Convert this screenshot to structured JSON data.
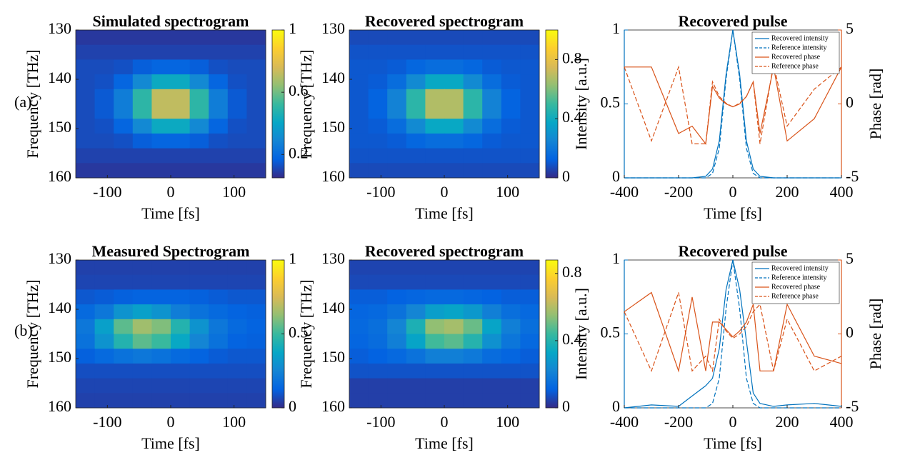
{
  "panel_labels": [
    "(a)",
    "(b)"
  ],
  "chart_data": [
    {
      "type": "heatmap",
      "title": "Simulated spectrogram",
      "xlabel": "Time [fs]",
      "ylabel": "Frequency [THz]",
      "x_bins": [
        -150,
        -120,
        -90,
        -60,
        -30,
        0,
        30,
        60,
        90,
        120,
        150
      ],
      "y_bins": [
        130,
        133,
        136,
        139,
        142,
        145,
        148,
        151,
        154,
        157,
        160
      ],
      "values": [
        [
          0.08,
          0.08,
          0.08,
          0.08,
          0.08,
          0.08,
          0.08,
          0.08,
          0.08,
          0.08
        ],
        [
          0.1,
          0.1,
          0.1,
          0.1,
          0.1,
          0.1,
          0.1,
          0.1,
          0.1,
          0.1
        ],
        [
          0.12,
          0.12,
          0.13,
          0.16,
          0.18,
          0.18,
          0.16,
          0.13,
          0.12,
          0.12
        ],
        [
          0.12,
          0.13,
          0.18,
          0.3,
          0.42,
          0.42,
          0.3,
          0.18,
          0.13,
          0.12
        ],
        [
          0.12,
          0.15,
          0.26,
          0.5,
          0.72,
          0.72,
          0.5,
          0.26,
          0.15,
          0.12
        ],
        [
          0.12,
          0.15,
          0.26,
          0.5,
          0.72,
          0.72,
          0.5,
          0.26,
          0.15,
          0.12
        ],
        [
          0.12,
          0.13,
          0.18,
          0.3,
          0.42,
          0.42,
          0.3,
          0.18,
          0.13,
          0.12
        ],
        [
          0.12,
          0.12,
          0.13,
          0.16,
          0.18,
          0.18,
          0.16,
          0.13,
          0.12,
          0.12
        ],
        [
          0.1,
          0.1,
          0.1,
          0.1,
          0.1,
          0.1,
          0.1,
          0.1,
          0.1,
          0.1
        ],
        [
          0.08,
          0.08,
          0.08,
          0.08,
          0.08,
          0.08,
          0.08,
          0.08,
          0.08,
          0.08
        ]
      ],
      "xlim": [
        -150,
        150
      ],
      "xticks": [
        -100,
        0,
        100
      ],
      "ylim": [
        160,
        130
      ],
      "yticks": [
        130,
        140,
        150,
        160
      ],
      "colormap": "parula",
      "clim": [
        0.05,
        1
      ],
      "cticks": [
        0.2,
        0.6,
        1
      ]
    },
    {
      "type": "heatmap",
      "title": "Recovered spectrogram",
      "xlabel": "Time [fs]",
      "ylabel": "Frequency [THz]",
      "x_bins": [
        -150,
        -120,
        -90,
        -60,
        -30,
        0,
        30,
        60,
        90,
        120,
        150
      ],
      "y_bins": [
        130,
        133,
        136,
        139,
        142,
        145,
        148,
        151,
        154,
        157,
        160
      ],
      "values": [
        [
          0.07,
          0.07,
          0.07,
          0.07,
          0.07,
          0.07,
          0.07,
          0.07,
          0.07,
          0.07
        ],
        [
          0.09,
          0.09,
          0.09,
          0.09,
          0.09,
          0.09,
          0.09,
          0.09,
          0.09,
          0.09
        ],
        [
          0.1,
          0.1,
          0.11,
          0.14,
          0.16,
          0.16,
          0.14,
          0.11,
          0.1,
          0.1
        ],
        [
          0.1,
          0.11,
          0.16,
          0.27,
          0.38,
          0.38,
          0.27,
          0.16,
          0.11,
          0.1
        ],
        [
          0.1,
          0.13,
          0.24,
          0.47,
          0.68,
          0.68,
          0.47,
          0.24,
          0.13,
          0.1
        ],
        [
          0.1,
          0.13,
          0.24,
          0.47,
          0.68,
          0.68,
          0.47,
          0.24,
          0.13,
          0.1
        ],
        [
          0.1,
          0.11,
          0.16,
          0.27,
          0.38,
          0.38,
          0.27,
          0.16,
          0.11,
          0.1
        ],
        [
          0.1,
          0.1,
          0.11,
          0.14,
          0.16,
          0.16,
          0.14,
          0.11,
          0.1,
          0.1
        ],
        [
          0.09,
          0.09,
          0.09,
          0.09,
          0.09,
          0.09,
          0.09,
          0.09,
          0.09,
          0.09
        ],
        [
          0.07,
          0.07,
          0.07,
          0.07,
          0.07,
          0.07,
          0.07,
          0.07,
          0.07,
          0.07
        ]
      ],
      "xlim": [
        -150,
        150
      ],
      "xticks": [
        -100,
        0,
        100
      ],
      "ylim": [
        160,
        130
      ],
      "yticks": [
        130,
        140,
        150,
        160
      ],
      "colormap": "parula",
      "clim": [
        0,
        1
      ],
      "cticks": [
        0,
        0.4,
        0.8
      ]
    },
    {
      "type": "line",
      "title": "Recovered pulse",
      "xlabel": "Time [fs]",
      "ylabel": "Intensity [a.u.]",
      "y2label": "Phase [rad]",
      "ylabel_color": "#0072bd",
      "y2label_color": "#d95319",
      "x": [
        -400,
        -300,
        -200,
        -150,
        -100,
        -75,
        -50,
        -25,
        0,
        25,
        50,
        75,
        100,
        150,
        200,
        300,
        400
      ],
      "series": [
        {
          "name": "Recovered intensity",
          "color": "#0072bd",
          "dash": "solid",
          "values": [
            0,
            0,
            0,
            0,
            0.01,
            0.06,
            0.25,
            0.7,
            1,
            0.7,
            0.25,
            0.06,
            0.01,
            0,
            0,
            0,
            0
          ]
        },
        {
          "name": "Reference intensity",
          "color": "#0072bd",
          "dash": "dashed",
          "values": [
            0,
            0,
            0,
            0,
            0,
            0.03,
            0.2,
            0.67,
            1,
            0.67,
            0.2,
            0.03,
            0,
            0,
            0,
            0,
            0
          ]
        },
        {
          "name": "Recovered phase",
          "color": "#d95319",
          "dash": "solid",
          "axis": "y2",
          "values": [
            2.5,
            2.5,
            -2,
            -1.5,
            -2.7,
            1.2,
            0.4,
            0,
            -0.2,
            0,
            0.5,
            1.5,
            -2,
            2.5,
            -2.5,
            -1,
            2.5
          ]
        },
        {
          "name": "Reference phase",
          "color": "#d95319",
          "dash": "dashed",
          "axis": "y2",
          "values": [
            2.5,
            -2.5,
            2.5,
            -2.7,
            -2.7,
            1.5,
            0.5,
            0.05,
            -0.2,
            0.05,
            0.5,
            1.5,
            -2.7,
            2.7,
            -1.5,
            1,
            2.5
          ]
        }
      ],
      "xlim": [
        -400,
        400
      ],
      "xticks": [
        -400,
        -200,
        0,
        200,
        400
      ],
      "ylim": [
        0,
        1
      ],
      "yticks": [
        0,
        0.5,
        1
      ],
      "y2lim": [
        -5,
        5
      ],
      "y2ticks": [
        -5,
        0,
        5
      ],
      "legend": "upper right"
    },
    {
      "type": "heatmap",
      "title": "Measured Spectrogram",
      "xlabel": "Time [fs]",
      "ylabel": "Frequency [THz]",
      "x_bins": [
        -150,
        -120,
        -90,
        -60,
        -30,
        0,
        30,
        60,
        90,
        120,
        150
      ],
      "y_bins": [
        130,
        133,
        136,
        139,
        142,
        145,
        148,
        151,
        154,
        157,
        160
      ],
      "values": [
        [
          0.05,
          0.05,
          0.05,
          0.05,
          0.05,
          0.05,
          0.05,
          0.05,
          0.05,
          0.05
        ],
        [
          0.06,
          0.06,
          0.06,
          0.06,
          0.06,
          0.06,
          0.06,
          0.06,
          0.06,
          0.06
        ],
        [
          0.1,
          0.11,
          0.12,
          0.13,
          0.13,
          0.13,
          0.12,
          0.11,
          0.1,
          0.1
        ],
        [
          0.15,
          0.2,
          0.3,
          0.35,
          0.3,
          0.22,
          0.18,
          0.15,
          0.13,
          0.12
        ],
        [
          0.2,
          0.35,
          0.55,
          0.65,
          0.6,
          0.45,
          0.3,
          0.2,
          0.15,
          0.13
        ],
        [
          0.18,
          0.3,
          0.45,
          0.55,
          0.5,
          0.38,
          0.25,
          0.18,
          0.13,
          0.12
        ],
        [
          0.12,
          0.15,
          0.18,
          0.2,
          0.18,
          0.15,
          0.13,
          0.11,
          0.1,
          0.1
        ],
        [
          0.08,
          0.08,
          0.08,
          0.08,
          0.08,
          0.08,
          0.08,
          0.08,
          0.08,
          0.08
        ],
        [
          0.06,
          0.06,
          0.06,
          0.06,
          0.06,
          0.06,
          0.06,
          0.06,
          0.06,
          0.06
        ],
        [
          0.05,
          0.05,
          0.05,
          0.05,
          0.05,
          0.05,
          0.05,
          0.05,
          0.05,
          0.05
        ]
      ],
      "xlim": [
        -150,
        150
      ],
      "xticks": [
        -100,
        0,
        100
      ],
      "ylim": [
        160,
        130
      ],
      "yticks": [
        130,
        140,
        150,
        160
      ],
      "colormap": "parula",
      "clim": [
        0,
        1
      ],
      "cticks": [
        0,
        0.5,
        1
      ]
    },
    {
      "type": "heatmap",
      "title": "Recovered spectrogram",
      "xlabel": "Time [fs]",
      "ylabel": "Frequency [THz]",
      "x_bins": [
        -150,
        -120,
        -90,
        -60,
        -30,
        0,
        30,
        60,
        90,
        120,
        150
      ],
      "y_bins": [
        130,
        133,
        136,
        139,
        142,
        145,
        148,
        151,
        154,
        157,
        160
      ],
      "values": [
        [
          0.05,
          0.05,
          0.05,
          0.05,
          0.05,
          0.05,
          0.05,
          0.05,
          0.05,
          0.05
        ],
        [
          0.06,
          0.06,
          0.06,
          0.06,
          0.06,
          0.06,
          0.06,
          0.06,
          0.06,
          0.06
        ],
        [
          0.1,
          0.1,
          0.11,
          0.12,
          0.13,
          0.13,
          0.12,
          0.11,
          0.1,
          0.1
        ],
        [
          0.12,
          0.13,
          0.16,
          0.22,
          0.3,
          0.32,
          0.28,
          0.2,
          0.15,
          0.13
        ],
        [
          0.13,
          0.15,
          0.22,
          0.38,
          0.55,
          0.58,
          0.5,
          0.32,
          0.2,
          0.15
        ],
        [
          0.12,
          0.14,
          0.2,
          0.32,
          0.45,
          0.48,
          0.4,
          0.26,
          0.17,
          0.13
        ],
        [
          0.1,
          0.11,
          0.13,
          0.16,
          0.2,
          0.2,
          0.18,
          0.14,
          0.12,
          0.1
        ],
        [
          0.08,
          0.08,
          0.08,
          0.08,
          0.08,
          0.08,
          0.08,
          0.08,
          0.08,
          0.08
        ],
        [
          0.04,
          0.04,
          0.04,
          0.04,
          0.04,
          0.04,
          0.04,
          0.04,
          0.04,
          0.04
        ],
        [
          0.04,
          0.04,
          0.04,
          0.04,
          0.04,
          0.04,
          0.04,
          0.04,
          0.04,
          0.04
        ]
      ],
      "xlim": [
        -150,
        150
      ],
      "xticks": [
        -100,
        0,
        100
      ],
      "ylim": [
        160,
        130
      ],
      "yticks": [
        130,
        140,
        150,
        160
      ],
      "colormap": "parula",
      "clim": [
        0,
        0.88
      ],
      "cticks": [
        0,
        0.4,
        0.8
      ]
    },
    {
      "type": "line",
      "title": "Recovered pulse",
      "xlabel": "Time [fs]",
      "ylabel": "Intensity [a.u.]",
      "y2label": "Phase [rad]",
      "ylabel_color": "#0072bd",
      "y2label_color": "#d95319",
      "x": [
        -400,
        -300,
        -200,
        -150,
        -100,
        -75,
        -50,
        -25,
        0,
        25,
        50,
        75,
        100,
        150,
        200,
        300,
        400
      ],
      "series": [
        {
          "name": "Recovered intensity",
          "color": "#0072bd",
          "dash": "solid",
          "values": [
            0,
            0.02,
            0.01,
            0.08,
            0.15,
            0.2,
            0.4,
            0.8,
            1,
            0.8,
            0.45,
            0.1,
            0.03,
            0.01,
            0.02,
            0.03,
            0.01
          ]
        },
        {
          "name": "Reference intensity",
          "color": "#0072bd",
          "dash": "dashed",
          "values": [
            0,
            0,
            0,
            0,
            0,
            0.03,
            0.2,
            0.67,
            1,
            0.67,
            0.2,
            0.03,
            0,
            0,
            0,
            0,
            0
          ]
        },
        {
          "name": "Recovered phase",
          "color": "#d95319",
          "dash": "solid",
          "axis": "y2",
          "values": [
            1.5,
            2.8,
            -2.5,
            2.5,
            -2.5,
            0.8,
            0.8,
            0.3,
            -0.2,
            0.2,
            0.8,
            2,
            -2.5,
            -2.5,
            2,
            -1.5,
            -2
          ]
        },
        {
          "name": "Reference phase",
          "color": "#d95319",
          "dash": "dashed",
          "axis": "y2",
          "values": [
            1.5,
            -2.5,
            2.8,
            -2.5,
            -1.5,
            -2.5,
            1,
            0.2,
            -0.3,
            0,
            0.5,
            1.5,
            2,
            -2.5,
            1,
            -2.5,
            -1.5
          ]
        }
      ],
      "xlim": [
        -400,
        400
      ],
      "xticks": [
        -400,
        -200,
        0,
        200,
        400
      ],
      "ylim": [
        0,
        1
      ],
      "yticks": [
        0,
        0.5,
        1
      ],
      "y2lim": [
        -5,
        5
      ],
      "y2ticks": [
        -5,
        0,
        5
      ],
      "legend": "upper right"
    }
  ]
}
